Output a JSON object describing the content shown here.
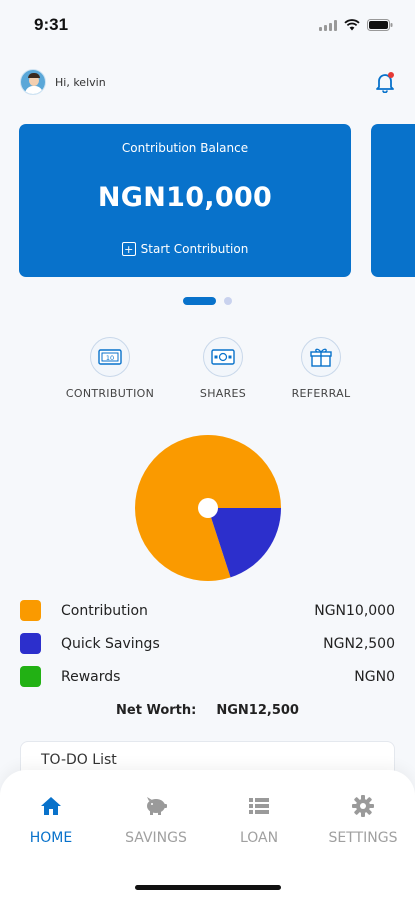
{
  "status_bar": {
    "time": "9:31"
  },
  "header": {
    "greeting": "Hi, kelvin"
  },
  "balance_card": {
    "label": "Contribution Balance",
    "amount": "NGN10,000",
    "action_label": "Start Contribution"
  },
  "carousel": {
    "page_count": 2,
    "active_index": 0
  },
  "quick_actions": [
    {
      "label": "CONTRIBUTION",
      "icon": "money-icon"
    },
    {
      "label": "SHARES",
      "icon": "cash-icon"
    },
    {
      "label": "REFERRAL",
      "icon": "gift-icon"
    }
  ],
  "chart_data": {
    "type": "pie",
    "categories": [
      "Contribution",
      "Quick Savings",
      "Rewards"
    ],
    "values": [
      10000,
      2500,
      0
    ],
    "colors": [
      "#fa9a00",
      "#2c2fcc",
      "#22b114"
    ]
  },
  "legend": [
    {
      "name": "Contribution",
      "value": "NGN10,000",
      "color": "#fa9a00"
    },
    {
      "name": "Quick Savings",
      "value": "NGN2,500",
      "color": "#2c2fcc"
    },
    {
      "name": "Rewards",
      "value": "NGN0",
      "color": "#22b114"
    }
  ],
  "net_worth": {
    "label": "Net Worth:",
    "value": "NGN12,500"
  },
  "todo": {
    "title": "TO-DO List"
  },
  "bottom_nav": [
    {
      "label": "HOME",
      "icon": "home-icon",
      "active": true
    },
    {
      "label": "SAVINGS",
      "icon": "piggy-bank-icon",
      "active": false
    },
    {
      "label": "LOAN",
      "icon": "list-icon",
      "active": false
    },
    {
      "label": "SETTINGS",
      "icon": "gear-icon",
      "active": false
    }
  ],
  "colors": {
    "primary": "#0872cb",
    "background": "#f6f8fb",
    "inactive": "#a0a0a0"
  }
}
